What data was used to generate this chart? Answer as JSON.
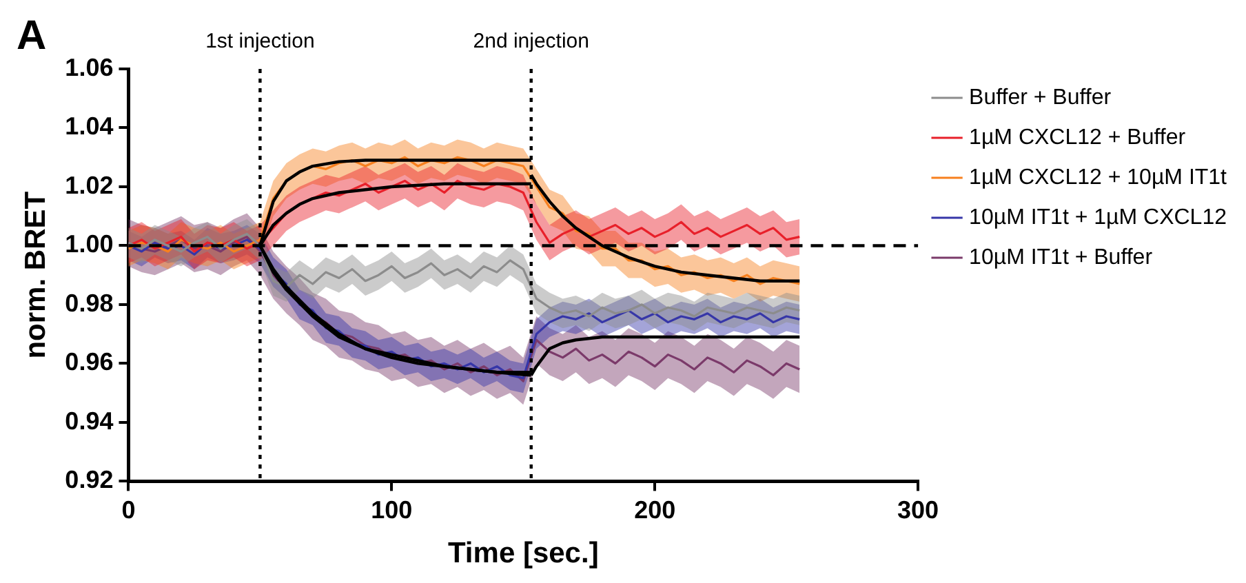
{
  "chart_data": {
    "type": "line",
    "xlabel": "Time [sec.]",
    "ylabel": "norm. BRET",
    "annotations": [
      "A"
    ],
    "x": [
      0,
      5,
      10,
      15,
      20,
      25,
      30,
      35,
      40,
      45,
      50,
      55,
      60,
      65,
      70,
      75,
      80,
      85,
      90,
      95,
      100,
      105,
      110,
      115,
      120,
      125,
      130,
      135,
      140,
      145,
      150,
      155,
      160,
      165,
      170,
      175,
      180,
      185,
      190,
      195,
      200,
      205,
      210,
      215,
      220,
      225,
      230,
      235,
      240,
      245,
      250,
      255
    ],
    "xlim": [
      0,
      300
    ],
    "xticks": [
      0,
      100,
      200,
      300
    ],
    "ylim": [
      0.92,
      1.06
    ],
    "yticks": [
      {
        "value": 0.92,
        "label": "0.92"
      },
      {
        "value": 0.94,
        "label": "0.94"
      },
      {
        "value": 0.96,
        "label": "0.96"
      },
      {
        "value": 0.98,
        "label": "0.98"
      },
      {
        "value": 1,
        "label": "1.00"
      },
      {
        "value": 1.02,
        "label": "1.02"
      },
      {
        "value": 1.04,
        "label": "1.04"
      },
      {
        "value": 1.06,
        "label": "1.06"
      }
    ],
    "grid": false,
    "legend": "right",
    "marker": "none",
    "ref_lines": [
      {
        "axis": "y",
        "value": 1,
        "line_style": "dashed"
      },
      {
        "axis": "x",
        "value": 50,
        "label": "1st injection",
        "line_style": "dotted"
      },
      {
        "axis": "x",
        "value": 153,
        "label": "2nd injection",
        "line_style": "dotted"
      }
    ],
    "series": [
      {
        "name": "Buffer + Buffer",
        "color": "#8c8c8c",
        "values": [
          1.001,
          0.999,
          1.002,
          1.0,
          0.998,
          1.001,
          1.003,
          0.999,
          1.002,
          1.004,
          1.0,
          0.988,
          0.986,
          0.99,
          0.987,
          0.991,
          0.989,
          0.992,
          0.988,
          0.99,
          0.993,
          0.989,
          0.991,
          0.994,
          0.99,
          0.992,
          0.989,
          0.993,
          0.991,
          0.995,
          0.992,
          0.982,
          0.979,
          0.977,
          0.978,
          0.976,
          0.979,
          0.977,
          0.978,
          0.98,
          0.977,
          0.979,
          0.978,
          0.976,
          0.979,
          0.978,
          0.977,
          0.979,
          0.978,
          0.977,
          0.979,
          0.978
        ],
        "lower": [
          0.996,
          0.994,
          0.997,
          0.995,
          0.993,
          0.996,
          0.998,
          0.994,
          0.997,
          0.999,
          0.995,
          0.983,
          0.981,
          0.985,
          0.982,
          0.986,
          0.984,
          0.987,
          0.983,
          0.985,
          0.988,
          0.984,
          0.986,
          0.989,
          0.985,
          0.987,
          0.984,
          0.988,
          0.986,
          0.99,
          0.987,
          0.977,
          0.974,
          0.972,
          0.973,
          0.971,
          0.974,
          0.972,
          0.973,
          0.975,
          0.972,
          0.974,
          0.973,
          0.971,
          0.974,
          0.973,
          0.972,
          0.974,
          0.973,
          0.972,
          0.974,
          0.973
        ],
        "upper": [
          1.006,
          1.004,
          1.007,
          1.005,
          1.003,
          1.006,
          1.008,
          1.004,
          1.007,
          1.009,
          1.005,
          0.993,
          0.991,
          0.995,
          0.992,
          0.996,
          0.994,
          0.997,
          0.993,
          0.995,
          0.998,
          0.994,
          0.996,
          0.999,
          0.995,
          0.997,
          0.994,
          0.998,
          0.996,
          1.0,
          0.997,
          0.987,
          0.984,
          0.982,
          0.983,
          0.981,
          0.984,
          0.982,
          0.983,
          0.985,
          0.982,
          0.984,
          0.983,
          0.981,
          0.984,
          0.983,
          0.982,
          0.984,
          0.983,
          0.982,
          0.984,
          0.983
        ]
      },
      {
        "name": "1µM CXCL12 + Buffer",
        "color": "#e8202a",
        "values": [
          1.0,
          1.002,
          0.999,
          1.001,
          1.003,
          0.998,
          1.001,
          1.0,
          1.002,
          0.999,
          1.001,
          1.006,
          1.011,
          1.014,
          1.016,
          1.018,
          1.017,
          1.019,
          1.021,
          1.018,
          1.02,
          1.022,
          1.019,
          1.021,
          1.018,
          1.022,
          1.02,
          1.019,
          1.021,
          1.02,
          1.018,
          1.008,
          1.001,
          1.004,
          1.006,
          1.003,
          1.005,
          1.007,
          1.004,
          1.006,
          1.003,
          1.005,
          1.008,
          1.004,
          1.006,
          1.003,
          1.005,
          1.007,
          1.004,
          1.006,
          1.002,
          1.003
        ],
        "lower": [
          0.994,
          0.996,
          0.993,
          0.995,
          0.997,
          0.992,
          0.995,
          0.994,
          0.996,
          0.993,
          0.995,
          1.0,
          1.005,
          1.008,
          1.01,
          1.012,
          1.011,
          1.013,
          1.015,
          1.012,
          1.014,
          1.016,
          1.013,
          1.015,
          1.012,
          1.016,
          1.014,
          1.013,
          1.015,
          1.014,
          1.012,
          1.002,
          0.995,
          0.998,
          1.0,
          0.997,
          0.999,
          1.001,
          0.998,
          1.0,
          0.997,
          0.999,
          1.002,
          0.998,
          1.0,
          0.997,
          0.999,
          1.001,
          0.998,
          1.0,
          0.996,
          0.997
        ],
        "upper": [
          1.006,
          1.008,
          1.005,
          1.007,
          1.009,
          1.004,
          1.007,
          1.006,
          1.008,
          1.005,
          1.007,
          1.012,
          1.017,
          1.02,
          1.022,
          1.024,
          1.023,
          1.025,
          1.027,
          1.024,
          1.026,
          1.028,
          1.025,
          1.027,
          1.024,
          1.028,
          1.026,
          1.025,
          1.027,
          1.026,
          1.024,
          1.014,
          1.007,
          1.01,
          1.012,
          1.009,
          1.011,
          1.013,
          1.01,
          1.012,
          1.009,
          1.011,
          1.014,
          1.01,
          1.012,
          1.009,
          1.011,
          1.013,
          1.01,
          1.012,
          1.008,
          1.009
        ]
      },
      {
        "name": "1µM CXCL12 + 10µM IT1t",
        "color": "#f7801e",
        "values": [
          0.999,
          1.001,
          1.0,
          0.998,
          1.002,
          1.0,
          0.999,
          1.001,
          0.998,
          1.0,
          1.002,
          1.016,
          1.022,
          1.025,
          1.027,
          1.026,
          1.028,
          1.029,
          1.027,
          1.029,
          1.028,
          1.03,
          1.027,
          1.029,
          1.028,
          1.03,
          1.029,
          1.027,
          1.029,
          1.028,
          1.027,
          1.02,
          1.013,
          1.011,
          1.005,
          1.004,
          0.999,
          0.999,
          0.995,
          0.995,
          0.992,
          0.993,
          0.99,
          0.991,
          0.989,
          0.99,
          0.988,
          0.99,
          0.987,
          0.989,
          0.988,
          0.987
        ],
        "lower": [
          0.993,
          0.995,
          0.994,
          0.992,
          0.996,
          0.994,
          0.993,
          0.995,
          0.992,
          0.994,
          0.996,
          1.01,
          1.016,
          1.019,
          1.021,
          1.02,
          1.022,
          1.023,
          1.021,
          1.023,
          1.022,
          1.024,
          1.021,
          1.023,
          1.022,
          1.024,
          1.023,
          1.021,
          1.023,
          1.022,
          1.021,
          1.014,
          1.007,
          1.005,
          0.999,
          0.998,
          0.993,
          0.993,
          0.989,
          0.989,
          0.986,
          0.987,
          0.984,
          0.985,
          0.983,
          0.984,
          0.982,
          0.984,
          0.981,
          0.983,
          0.982,
          0.981
        ],
        "upper": [
          1.005,
          1.007,
          1.006,
          1.004,
          1.008,
          1.006,
          1.005,
          1.007,
          1.004,
          1.006,
          1.008,
          1.022,
          1.028,
          1.031,
          1.033,
          1.032,
          1.034,
          1.035,
          1.033,
          1.035,
          1.034,
          1.036,
          1.033,
          1.035,
          1.034,
          1.036,
          1.035,
          1.033,
          1.035,
          1.034,
          1.033,
          1.026,
          1.019,
          1.017,
          1.011,
          1.01,
          1.005,
          1.005,
          1.001,
          1.001,
          0.998,
          0.999,
          0.996,
          0.997,
          0.995,
          0.996,
          0.994,
          0.996,
          0.993,
          0.995,
          0.994,
          0.993
        ]
      },
      {
        "name": "10µM IT1t + 1µM CXCL12",
        "color": "#3636a8",
        "values": [
          1.0,
          0.998,
          1.001,
          0.999,
          1.0,
          0.997,
          1.001,
          0.999,
          1.0,
          1.002,
          0.999,
          0.991,
          0.987,
          0.98,
          0.978,
          0.972,
          0.971,
          0.967,
          0.966,
          0.963,
          0.964,
          0.961,
          0.962,
          0.959,
          0.96,
          0.958,
          0.96,
          0.957,
          0.959,
          0.956,
          0.955,
          0.97,
          0.974,
          0.976,
          0.975,
          0.977,
          0.974,
          0.976,
          0.978,
          0.975,
          0.977,
          0.974,
          0.976,
          0.975,
          0.977,
          0.974,
          0.976,
          0.975,
          0.977,
          0.974,
          0.976,
          0.975
        ],
        "lower": [
          0.995,
          0.993,
          0.996,
          0.994,
          0.995,
          0.992,
          0.996,
          0.994,
          0.995,
          0.997,
          0.994,
          0.986,
          0.982,
          0.975,
          0.973,
          0.967,
          0.966,
          0.962,
          0.961,
          0.958,
          0.959,
          0.956,
          0.957,
          0.954,
          0.955,
          0.953,
          0.955,
          0.952,
          0.954,
          0.951,
          0.95,
          0.965,
          0.969,
          0.971,
          0.97,
          0.972,
          0.969,
          0.971,
          0.973,
          0.97,
          0.972,
          0.969,
          0.971,
          0.97,
          0.972,
          0.969,
          0.971,
          0.97,
          0.972,
          0.969,
          0.971,
          0.97
        ],
        "upper": [
          1.005,
          1.003,
          1.006,
          1.004,
          1.005,
          1.002,
          1.006,
          1.004,
          1.005,
          1.007,
          1.004,
          0.996,
          0.992,
          0.985,
          0.983,
          0.977,
          0.976,
          0.972,
          0.971,
          0.968,
          0.969,
          0.966,
          0.967,
          0.964,
          0.965,
          0.963,
          0.965,
          0.962,
          0.964,
          0.961,
          0.96,
          0.975,
          0.979,
          0.981,
          0.98,
          0.982,
          0.979,
          0.981,
          0.983,
          0.98,
          0.982,
          0.979,
          0.981,
          0.98,
          0.982,
          0.979,
          0.981,
          0.98,
          0.982,
          0.979,
          0.981,
          0.98
        ]
      },
      {
        "name": "10µM IT1t + Buffer",
        "color": "#7b3a6a",
        "values": [
          1.001,
          0.999,
          0.998,
          1.0,
          1.002,
          0.999,
          1.0,
          0.998,
          1.001,
          1.003,
          0.998,
          0.99,
          0.985,
          0.981,
          0.976,
          0.974,
          0.97,
          0.969,
          0.966,
          0.965,
          0.962,
          0.963,
          0.96,
          0.961,
          0.958,
          0.96,
          0.957,
          0.959,
          0.956,
          0.958,
          0.954,
          0.968,
          0.964,
          0.962,
          0.965,
          0.961,
          0.963,
          0.96,
          0.964,
          0.962,
          0.959,
          0.963,
          0.961,
          0.958,
          0.962,
          0.96,
          0.957,
          0.961,
          0.959,
          0.956,
          0.96,
          0.958
        ],
        "lower": [
          0.993,
          0.991,
          0.99,
          0.992,
          0.994,
          0.991,
          0.992,
          0.99,
          0.993,
          0.995,
          0.99,
          0.982,
          0.977,
          0.973,
          0.968,
          0.966,
          0.962,
          0.961,
          0.958,
          0.957,
          0.954,
          0.955,
          0.952,
          0.953,
          0.95,
          0.952,
          0.949,
          0.951,
          0.948,
          0.95,
          0.946,
          0.96,
          0.956,
          0.954,
          0.957,
          0.953,
          0.955,
          0.952,
          0.956,
          0.954,
          0.951,
          0.955,
          0.953,
          0.95,
          0.954,
          0.952,
          0.949,
          0.953,
          0.951,
          0.948,
          0.952,
          0.95
        ],
        "upper": [
          1.009,
          1.007,
          1.006,
          1.008,
          1.01,
          1.007,
          1.008,
          1.006,
          1.009,
          1.011,
          1.006,
          0.998,
          0.993,
          0.989,
          0.984,
          0.982,
          0.978,
          0.977,
          0.974,
          0.973,
          0.97,
          0.971,
          0.968,
          0.969,
          0.966,
          0.968,
          0.965,
          0.967,
          0.964,
          0.966,
          0.962,
          0.976,
          0.972,
          0.97,
          0.973,
          0.969,
          0.971,
          0.968,
          0.972,
          0.97,
          0.967,
          0.971,
          0.969,
          0.966,
          0.97,
          0.968,
          0.965,
          0.969,
          0.967,
          0.964,
          0.968,
          0.966
        ]
      },
      {
        "type": "line",
        "color": "#000000",
        "x": [
          50,
          55,
          60,
          65,
          70,
          80,
          90,
          100,
          120,
          153
        ],
        "values": [
          1.0,
          1.015,
          1.022,
          1.025,
          1.027,
          1.0285,
          1.029,
          1.029,
          1.029,
          1.029
        ]
      },
      {
        "type": "line",
        "color": "#000000",
        "x": [
          153,
          155,
          160,
          165,
          170,
          175,
          180,
          190,
          200,
          210,
          220,
          230,
          240,
          255
        ],
        "values": [
          1.024,
          1.021,
          1.015,
          1.01,
          1.006,
          1.003,
          1.0,
          0.996,
          0.993,
          0.991,
          0.99,
          0.989,
          0.988,
          0.988
        ]
      },
      {
        "type": "line",
        "color": "#000000",
        "x": [
          50,
          55,
          60,
          65,
          70,
          80,
          90,
          100,
          120,
          153
        ],
        "values": [
          1.0,
          1.007,
          1.011,
          1.014,
          1.016,
          1.018,
          1.019,
          1.02,
          1.021,
          1.021
        ]
      },
      {
        "type": "line",
        "color": "#000000",
        "x": [
          50,
          55,
          60,
          70,
          80,
          90,
          100,
          110,
          120,
          130,
          140,
          153
        ],
        "values": [
          1.0,
          0.992,
          0.986,
          0.977,
          0.97,
          0.965,
          0.963,
          0.961,
          0.959,
          0.958,
          0.957,
          0.956
        ]
      },
      {
        "type": "line",
        "color": "#000000",
        "x": [
          153,
          155,
          160,
          165,
          170,
          180,
          200,
          255
        ],
        "values": [
          0.956,
          0.959,
          0.965,
          0.967,
          0.968,
          0.969,
          0.969,
          0.969
        ]
      },
      {
        "type": "line",
        "color": "#000000",
        "x": [
          50,
          55,
          60,
          70,
          80,
          90,
          100,
          110,
          120,
          130,
          140,
          153
        ],
        "values": [
          1.0,
          0.991,
          0.985,
          0.976,
          0.969,
          0.965,
          0.962,
          0.96,
          0.959,
          0.958,
          0.957,
          0.957
        ]
      }
    ]
  }
}
